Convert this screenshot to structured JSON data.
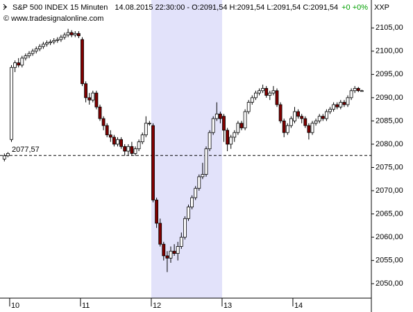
{
  "chart_data": {
    "type": "candlestick",
    "title": "S&P 500 INDEX 15 Minuten",
    "subtitle": "14.08.2015 22:30:00 - O:2091,54 H:2091,54 L:2091,54 C:2091,54",
    "change": "+0 +0%",
    "change_color": "#00a000",
    "source": "© www.tradesignalonline.com",
    "y_axis_label": "XXP",
    "categories": [
      null,
      null,
      "10",
      null,
      null,
      null,
      null,
      null,
      null,
      null,
      null,
      null,
      null,
      null,
      null,
      null,
      null,
      null,
      null,
      null,
      null,
      null,
      "11",
      null,
      null,
      null,
      null,
      null,
      null,
      null,
      null,
      null,
      null,
      null,
      null,
      null,
      null,
      null,
      null,
      null,
      null,
      null,
      "12",
      null,
      null,
      null,
      null,
      null,
      null,
      null,
      null,
      null,
      null,
      null,
      null,
      null,
      null,
      null,
      null,
      null,
      null,
      null,
      "13",
      null,
      null,
      null,
      null,
      null,
      null,
      null,
      null,
      null,
      null,
      null,
      null,
      null,
      null,
      null,
      null,
      null,
      null,
      null,
      "14",
      null,
      null,
      null,
      null,
      null,
      null,
      null,
      null,
      null,
      null,
      null,
      null,
      null,
      null,
      null,
      null,
      null,
      null,
      null
    ],
    "open": [
      2076.8,
      2077.5,
      2081.0,
      2096.5,
      2097.5,
      2097.0,
      2098.5,
      2099.0,
      2099.5,
      2100.0,
      2100.5,
      2101.0,
      2101.5,
      2101.8,
      2102.0,
      2102.3,
      2102.5,
      2103.0,
      2103.5,
      2104.0,
      2103.5,
      2103.8,
      2102.5,
      2093.0,
      2090.0,
      2089.5,
      2091.0,
      2088.0,
      2085.5,
      2084.0,
      2082.0,
      2081.5,
      2080.0,
      2081.0,
      2079.5,
      2078.5,
      2079.5,
      2078.0,
      2079.0,
      2080.5,
      2082.0,
      2084.5,
      2084.0,
      2068.0,
      2063.0,
      2058.5,
      2056.0,
      2055.5,
      2057.0,
      2056.5,
      2058.0,
      2060.0,
      2064.0,
      2066.5,
      2068.5,
      2070.5,
      2073.0,
      2073.5,
      2079.0,
      2082.5,
      2085.5,
      2086.5,
      2086.0,
      2083.0,
      2080.0,
      2081.5,
      2082.5,
      2084.5,
      2083.5,
      2087.0,
      2089.0,
      2090.0,
      2091.0,
      2091.5,
      2092.0,
      2090.5,
      2091.0,
      2091.5,
      2088.5,
      2085.0,
      2082.5,
      2084.0,
      2085.0,
      2087.0,
      2086.0,
      2085.5,
      2084.0,
      2082.5,
      2084.5,
      2085.0,
      2086.0,
      2085.5,
      2087.0,
      2087.5,
      2088.5,
      2088.0,
      2089.0,
      2088.5,
      2090.0,
      2091.5,
      2092.0,
      2091.5
    ],
    "high": [
      2078.0,
      2078.3,
      2097.0,
      2098.0,
      2098.5,
      2099.0,
      2099.5,
      2100.0,
      2100.5,
      2101.0,
      2101.5,
      2102.0,
      2102.3,
      2102.5,
      2102.8,
      2103.0,
      2103.5,
      2104.0,
      2104.8,
      2104.5,
      2104.3,
      2104.3,
      2103.0,
      2093.5,
      2091.0,
      2091.5,
      2091.5,
      2088.5,
      2086.0,
      2084.5,
      2083.0,
      2082.0,
      2081.5,
      2081.5,
      2080.0,
      2080.0,
      2080.5,
      2079.5,
      2081.0,
      2082.5,
      2086.0,
      2085.0,
      2084.5,
      2068.5,
      2064.0,
      2059.0,
      2057.0,
      2058.0,
      2058.5,
      2059.0,
      2061.0,
      2064.5,
      2067.0,
      2069.0,
      2071.0,
      2073.5,
      2076.0,
      2079.5,
      2083.0,
      2086.0,
      2089.0,
      2087.0,
      2086.5,
      2083.5,
      2082.0,
      2083.0,
      2085.0,
      2085.0,
      2087.5,
      2089.5,
      2090.5,
      2091.5,
      2092.0,
      2092.8,
      2092.5,
      2091.5,
      2092.5,
      2092.0,
      2089.0,
      2085.5,
      2084.5,
      2086.0,
      2088.0,
      2087.5,
      2086.5,
      2086.0,
      2084.5,
      2085.0,
      2085.5,
      2086.5,
      2086.5,
      2087.5,
      2088.0,
      2089.0,
      2089.0,
      2089.5,
      2089.5,
      2090.5,
      2092.0,
      2092.5,
      2092.3,
      2091.7
    ],
    "low": [
      2076.3,
      2077.2,
      2080.5,
      2095.5,
      2096.5,
      2096.5,
      2098.0,
      2098.5,
      2099.0,
      2099.5,
      2100.0,
      2100.5,
      2101.0,
      2101.3,
      2101.5,
      2101.8,
      2102.0,
      2102.5,
      2103.0,
      2103.0,
      2103.0,
      2102.8,
      2092.5,
      2089.0,
      2088.5,
      2089.0,
      2087.5,
      2085.0,
      2083.0,
      2081.5,
      2080.5,
      2079.5,
      2079.5,
      2079.0,
      2077.5,
      2077.5,
      2077.5,
      2077.5,
      2078.5,
      2080.0,
      2081.5,
      2084.0,
      2067.5,
      2062.0,
      2058.0,
      2055.0,
      2052.5,
      2054.5,
      2056.0,
      2055.0,
      2057.5,
      2059.5,
      2063.5,
      2066.0,
      2068.0,
      2070.0,
      2072.5,
      2073.0,
      2078.5,
      2082.0,
      2085.0,
      2084.5,
      2080.5,
      2078.5,
      2079.0,
      2080.5,
      2082.0,
      2083.0,
      2083.0,
      2086.5,
      2088.5,
      2089.5,
      2090.5,
      2091.0,
      2090.0,
      2089.5,
      2090.5,
      2088.0,
      2084.5,
      2081.5,
      2082.0,
      2083.5,
      2084.5,
      2085.5,
      2084.5,
      2083.5,
      2081.0,
      2082.0,
      2084.0,
      2084.5,
      2085.0,
      2085.0,
      2086.5,
      2087.0,
      2087.5,
      2087.5,
      2088.0,
      2088.0,
      2089.5,
      2091.0,
      2091.2,
      2091.3
    ],
    "close": [
      2077.5,
      2078.0,
      2096.5,
      2097.5,
      2097.0,
      2098.5,
      2099.0,
      2099.5,
      2100.0,
      2100.5,
      2101.0,
      2101.5,
      2101.8,
      2102.0,
      2102.3,
      2102.5,
      2103.0,
      2103.5,
      2104.0,
      2103.5,
      2103.8,
      2103.3,
      2093.0,
      2090.0,
      2089.5,
      2091.0,
      2088.0,
      2085.5,
      2084.0,
      2082.0,
      2081.5,
      2080.0,
      2081.0,
      2079.5,
      2078.5,
      2079.5,
      2078.0,
      2079.0,
      2080.5,
      2082.0,
      2084.5,
      2084.5,
      2068.0,
      2063.0,
      2058.5,
      2056.0,
      2055.5,
      2057.0,
      2056.5,
      2058.0,
      2060.0,
      2064.0,
      2066.5,
      2068.5,
      2070.5,
      2073.0,
      2073.5,
      2079.0,
      2082.5,
      2085.5,
      2086.5,
      2085.5,
      2083.0,
      2080.0,
      2081.5,
      2082.5,
      2084.5,
      2083.5,
      2087.0,
      2089.0,
      2090.0,
      2091.0,
      2091.5,
      2092.0,
      2090.5,
      2091.0,
      2091.5,
      2088.5,
      2085.0,
      2082.5,
      2084.0,
      2085.5,
      2087.0,
      2086.0,
      2085.5,
      2084.0,
      2082.5,
      2084.5,
      2085.0,
      2086.0,
      2085.5,
      2087.0,
      2087.5,
      2088.5,
      2088.0,
      2089.0,
      2088.5,
      2090.0,
      2091.5,
      2092.0,
      2091.5,
      2091.5
    ],
    "up_color": "#ffffff",
    "down_color": "#800000",
    "highlight": {
      "from": "12",
      "to": "13",
      "color": "#e2e2fa"
    },
    "reference_line": {
      "value": 2077.57,
      "label": "2077,57"
    },
    "ylim": [
      2046.9,
      2111.0
    ],
    "yticks": [
      {
        "value": 2050,
        "label": "2050,00"
      },
      {
        "value": 2055,
        "label": "2055,00"
      },
      {
        "value": 2060,
        "label": "2060,00"
      },
      {
        "value": 2065,
        "label": "2065,00"
      },
      {
        "value": 2070,
        "label": "2070,00"
      },
      {
        "value": 2075,
        "label": "2075,00"
      },
      {
        "value": 2080,
        "label": "2080,00"
      },
      {
        "value": 2085,
        "label": "2085,00"
      },
      {
        "value": 2090,
        "label": "2090,00"
      },
      {
        "value": 2095,
        "label": "2095,00"
      },
      {
        "value": 2100,
        "label": "2100,00"
      },
      {
        "value": 2105,
        "label": "2105,00"
      }
    ],
    "grid": false
  }
}
